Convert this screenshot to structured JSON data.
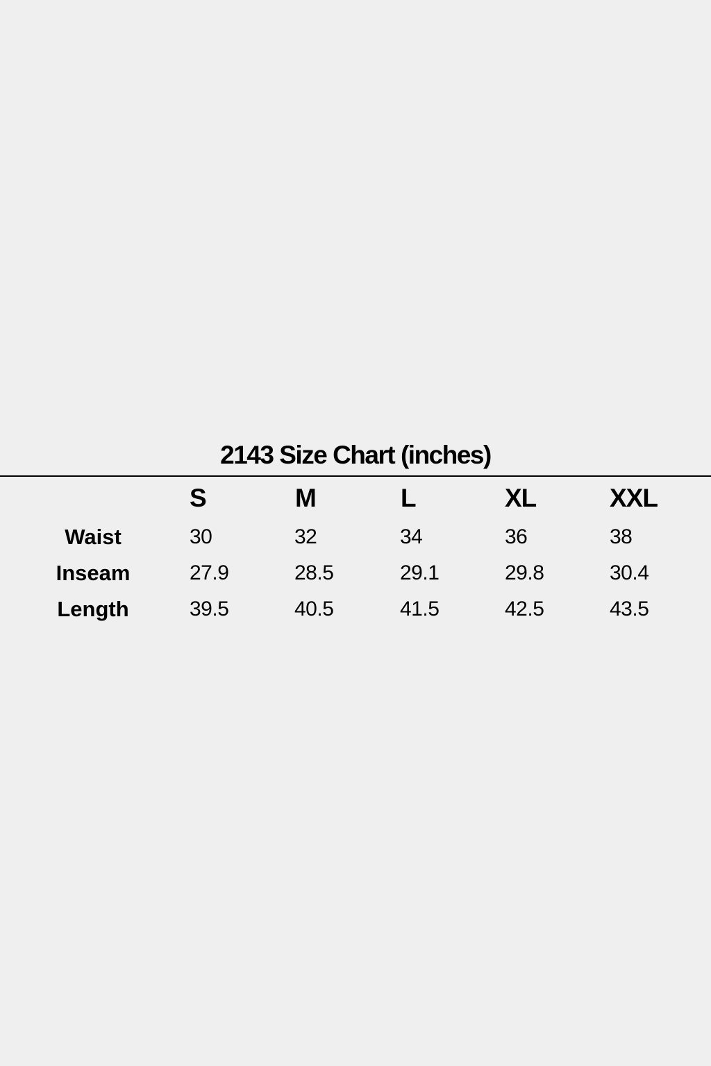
{
  "title": "2143 Size Chart (inches)",
  "table": {
    "columns": [
      "S",
      "M",
      "L",
      "XL",
      "XXL"
    ],
    "rows": [
      {
        "label": "Waist",
        "values": [
          "30",
          "32",
          "34",
          "36",
          "38"
        ]
      },
      {
        "label": "Inseam",
        "values": [
          "27.9",
          "28.5",
          "29.1",
          "29.8",
          "30.4"
        ]
      },
      {
        "label": "Length",
        "values": [
          "39.5",
          "40.5",
          "41.5",
          "42.5",
          "43.5"
        ]
      }
    ]
  }
}
